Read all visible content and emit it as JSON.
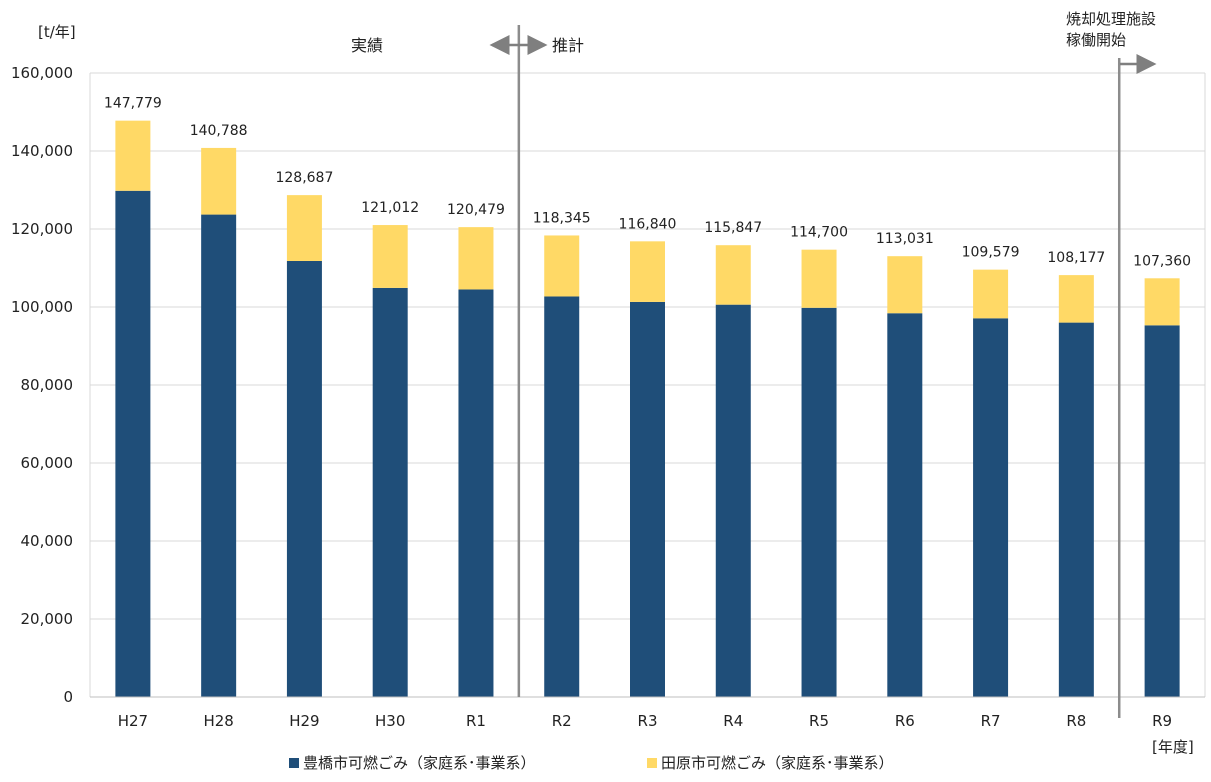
{
  "chart_data": {
    "type": "bar",
    "stacked": true,
    "yunit": "[t/年]",
    "xunit": "[年度]",
    "categories": [
      "H27",
      "H28",
      "H29",
      "H30",
      "R1",
      "R2",
      "R3",
      "R4",
      "R5",
      "R6",
      "R7",
      "R8",
      "R9"
    ],
    "series": [
      {
        "name": "豊橋市可燃ごみ（家庭系･事業系）",
        "color": "#1f4e79",
        "values": [
          129800,
          123700,
          111800,
          104900,
          104500,
          102700,
          101300,
          100600,
          99800,
          98400,
          97100,
          96000,
          95300
        ]
      },
      {
        "name": "田原市可燃ごみ（家庭系･事業系）",
        "color": "#ffd966",
        "values": [
          17979,
          17088,
          16887,
          16112,
          15979,
          15645,
          15540,
          15247,
          14900,
          14631,
          12479,
          12177,
          12060
        ]
      }
    ],
    "totals": [
      "147,779",
      "140,788",
      "128,687",
      "121,012",
      "120,479",
      "118,345",
      "116,840",
      "115,847",
      "114,700",
      "113,031",
      "109,579",
      "108,177",
      "107,360"
    ],
    "ylim": [
      0,
      160000
    ],
    "yticks": [
      "0",
      "20,000",
      "40,000",
      "60,000",
      "80,000",
      "100,000",
      "120,000",
      "140,000",
      "160,000"
    ],
    "ytick_values": [
      0,
      20000,
      40000,
      60000,
      80000,
      100000,
      120000,
      140000,
      160000
    ],
    "grid": true,
    "legend_position": "bottom",
    "annotations": {
      "actual": "実績",
      "forecast": "推計",
      "facility_line1": "焼却処理施設",
      "facility_line2": "稼働開始"
    },
    "dividers_after_category": [
      "R1",
      "R8"
    ]
  }
}
